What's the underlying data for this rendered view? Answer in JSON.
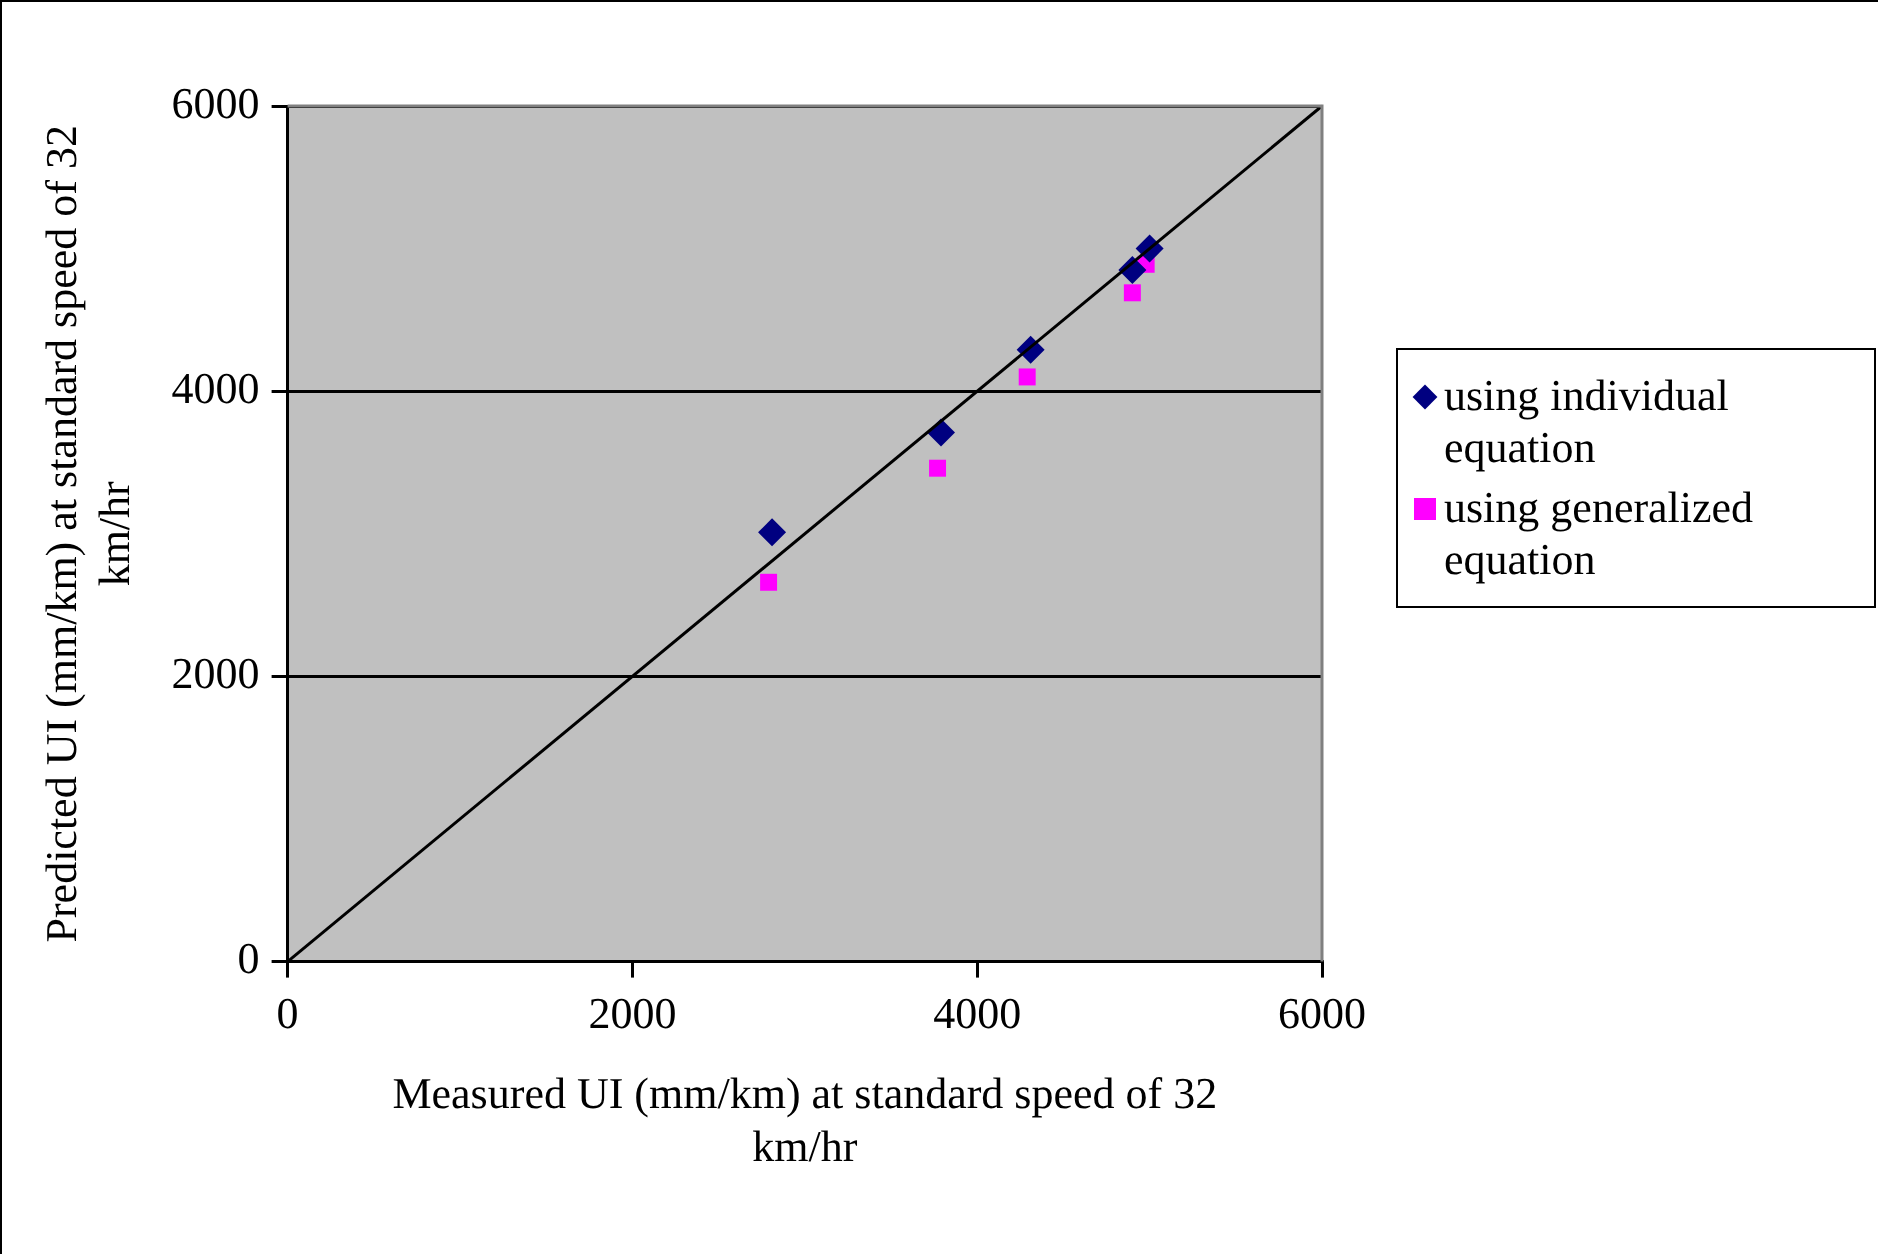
{
  "chart_data": {
    "type": "scatter",
    "xlabel": "Measured UI (mm/km) at standard speed of 32 km/hr",
    "ylabel": "Predicted UI (mm/km) at standard speed of 32 km/hr",
    "xlim": [
      0,
      6000
    ],
    "xticks": [
      0,
      2000,
      4000,
      6000
    ],
    "ylim": [
      0,
      6000
    ],
    "yticks": [
      0,
      2000,
      4000,
      6000
    ],
    "grid": "y",
    "legend": "right",
    "series": [
      {
        "name": "using individual equation",
        "color": "#000080",
        "marker": "diamond",
        "x": [
          2810,
          3790,
          4310,
          4900,
          5000
        ],
        "values": [
          3010,
          3710,
          4290,
          4850,
          5000
        ]
      },
      {
        "name": "using generalized equation",
        "color": "#ff00ff",
        "marker": "square",
        "x": [
          2790,
          3770,
          4290,
          4900,
          4980
        ],
        "values": [
          2660,
          3460,
          4100,
          4690,
          4890
        ]
      },
      {
        "type": "line",
        "color": "#000000",
        "marker": "none",
        "x": [
          0,
          6000
        ],
        "values": [
          0,
          6000
        ]
      }
    ]
  }
}
